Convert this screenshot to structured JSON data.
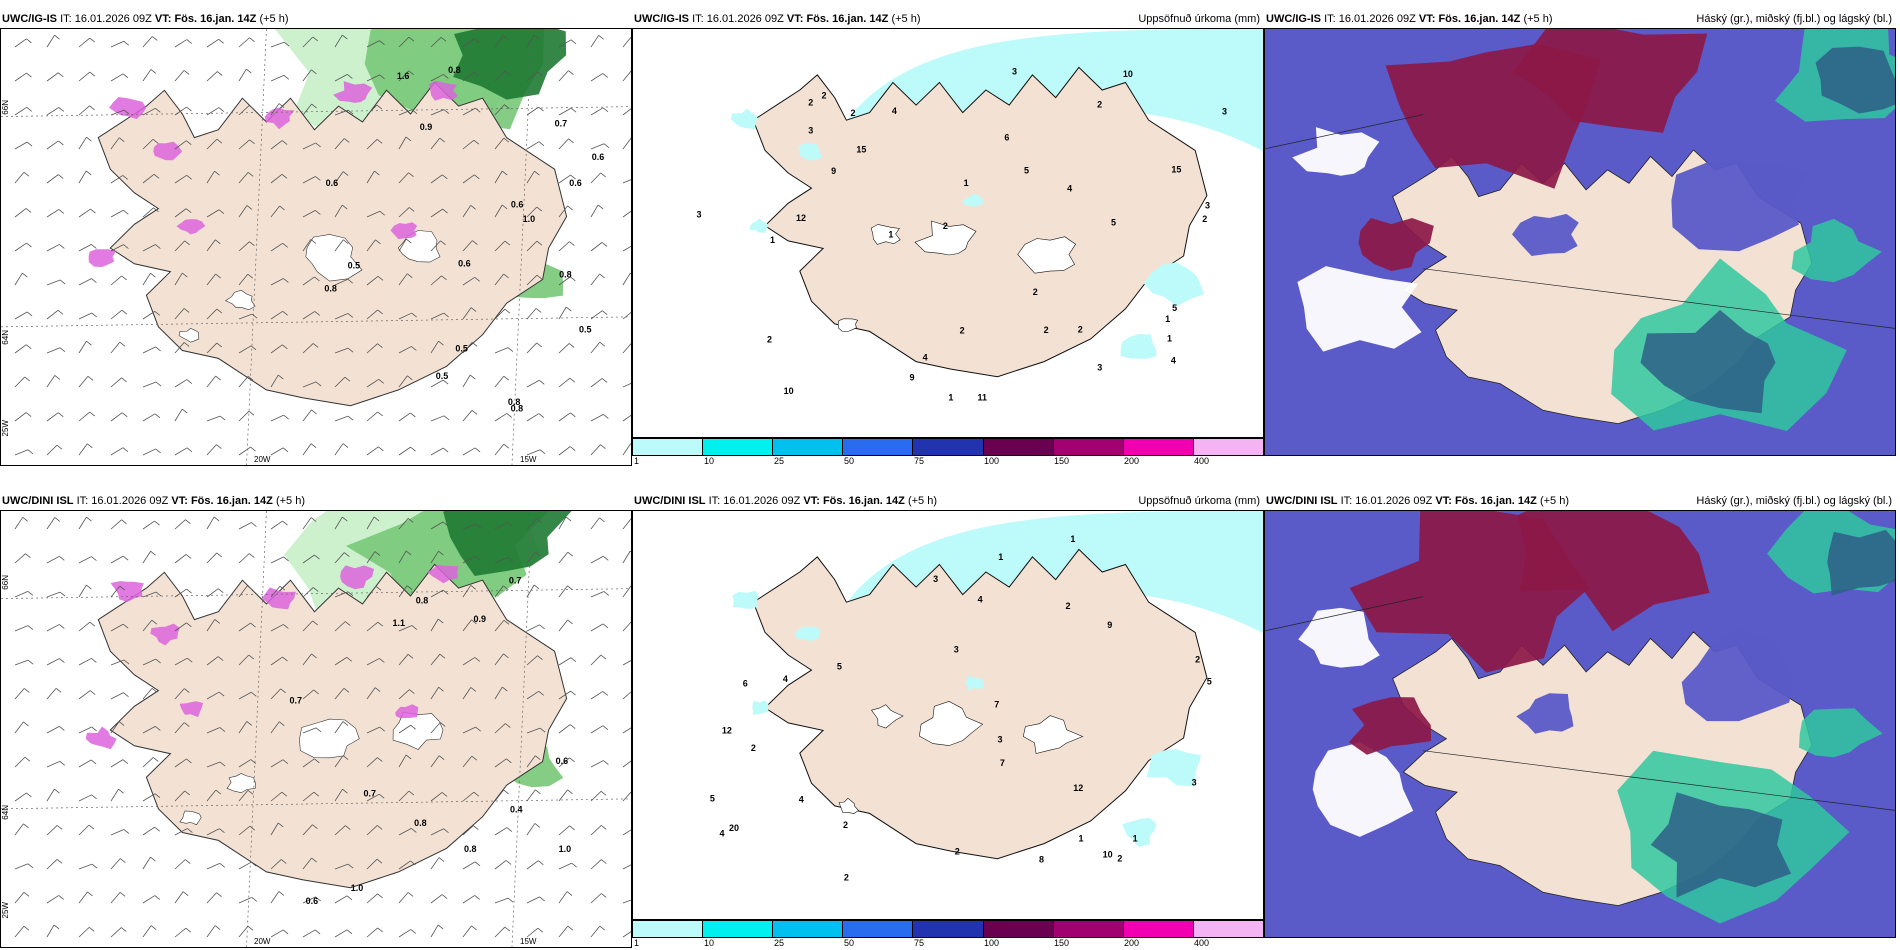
{
  "panels": [
    {
      "id": "p1",
      "model": "UWC/IG-IS",
      "it_label": "IT:",
      "it": "16.01.2026 09Z",
      "vt_label": "VT:",
      "vt": "Fös. 16.jan. 14Z",
      "lead": "(+5 h)",
      "right_title": "",
      "type": "wind"
    },
    {
      "id": "p2",
      "model": "UWC/IG-IS",
      "it_label": "IT:",
      "it": "16.01.2026 09Z",
      "vt_label": "VT:",
      "vt": "Fös. 16.jan. 14Z",
      "lead": "(+5 h)",
      "right_title": "Uppsöfnuð úrkoma (mm)",
      "type": "precip"
    },
    {
      "id": "p3",
      "model": "UWC/IG-IS",
      "it_label": "IT:",
      "it": "16.01.2026 09Z",
      "vt_label": "VT:",
      "vt": "Fös. 16.jan. 14Z",
      "lead": "(+5 h)",
      "right_title": "Háský (gr.), miðský (fj.bl.) og lágský (bl.)",
      "type": "cloud"
    },
    {
      "id": "p4",
      "model": "UWC/DINI ISL",
      "it_label": "IT:",
      "it": "16.01.2026 09Z",
      "vt_label": "VT:",
      "vt": "Fös. 16.jan. 14Z",
      "lead": "(+5 h)",
      "right_title": "",
      "type": "wind"
    },
    {
      "id": "p5",
      "model": "UWC/DINI ISL",
      "it_label": "IT:",
      "it": "16.01.2026 09Z",
      "vt_label": "VT:",
      "vt": "Fös. 16.jan. 14Z",
      "lead": "(+5 h)",
      "right_title": "Uppsöfnuð úrkoma (mm)",
      "type": "precip"
    },
    {
      "id": "p6",
      "model": "UWC/DINI ISL",
      "it_label": "IT:",
      "it": "16.01.2026 09Z",
      "vt_label": "VT:",
      "vt": "Fös. 16.jan. 14Z",
      "lead": "(+5 h)",
      "right_title": "Háský (gr.), miðský (fj.bl.) og lágský (bl.)",
      "type": "cloud"
    }
  ],
  "axis_labels": {
    "lat66": "66N",
    "lat64": "64N",
    "lon25": "25W",
    "lon20": "20W",
    "lon15": "15W"
  },
  "colorbar": {
    "colors": [
      "#bdfafa",
      "#00f0f0",
      "#00c0f0",
      "#2a6cf0",
      "#2233b0",
      "#6a0050",
      "#a00070",
      "#f000b0",
      "#f4b4f4"
    ],
    "ticks": [
      "1",
      "10",
      "25",
      "50",
      "75",
      "100",
      "150",
      "200",
      "400"
    ]
  },
  "precip_labels_top": [
    "2",
    "12",
    "15",
    "4",
    "4",
    "3",
    "15",
    "10",
    "11",
    "5",
    "9",
    "10",
    "4",
    "3",
    "2",
    "1",
    "1",
    "3",
    "2",
    "2",
    "1",
    "1",
    "2",
    "2",
    "4",
    "9",
    "5",
    "2",
    "2",
    "1",
    "3",
    "2",
    "2",
    "5",
    "6",
    "2",
    "3",
    "3",
    "1"
  ],
  "precip_labels_bottom": [
    "4",
    "2",
    "12",
    "20",
    "7",
    "12",
    "3",
    "4",
    "2",
    "3",
    "2",
    "1",
    "5",
    "2",
    "1",
    "2",
    "4",
    "3",
    "2",
    "6",
    "8",
    "10",
    "7",
    "5",
    "1",
    "1",
    "9",
    "5",
    "4",
    "2",
    "3"
  ],
  "wind_labels_top": [
    "0.5",
    "0.8",
    "0.7",
    "0.6",
    "0.9",
    "0.8",
    "0.6",
    "0.5",
    "0.6",
    "0.5",
    "0.8",
    "0.6",
    "1.0",
    "0.8",
    "0.5",
    "0.6",
    "0.8",
    "1.6"
  ],
  "wind_labels_bottom": [
    "0.8",
    "0.8",
    "1.0",
    "0.7",
    "0.6",
    "0.7",
    "0.6",
    "0.9",
    "1.0",
    "0.8",
    "1.1",
    "0.7",
    "0.4"
  ],
  "colors": {
    "land": "#f3e2d4",
    "sea": "#ffffff",
    "green_light": "#c8f0c8",
    "green_mid": "#78c878",
    "green_dark": "#1e7a32",
    "purple": "#dc64dc",
    "cloud_high": "#5a5ac8",
    "cloud_mid": "#8c1848",
    "cloud_low": "#30c8a0"
  }
}
